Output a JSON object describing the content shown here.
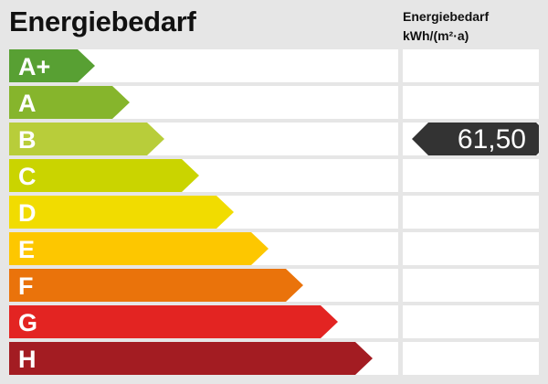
{
  "title": "Energiebedarf",
  "unit_header": {
    "line1": "Energiebedarf",
    "line2": "kWh/(m²·a)"
  },
  "chart_data": {
    "type": "bar",
    "title": "Energiebedarf",
    "categories": [
      "A+",
      "A",
      "B",
      "C",
      "D",
      "E",
      "F",
      "G",
      "H"
    ],
    "colors": [
      "#58a033",
      "#86b52c",
      "#b8cd3a",
      "#cad400",
      "#f1dc00",
      "#fdc700",
      "#ea730b",
      "#e32422",
      "#a31c22"
    ],
    "marker": {
      "category": "B",
      "value": "61,50",
      "color": "#333333"
    }
  }
}
